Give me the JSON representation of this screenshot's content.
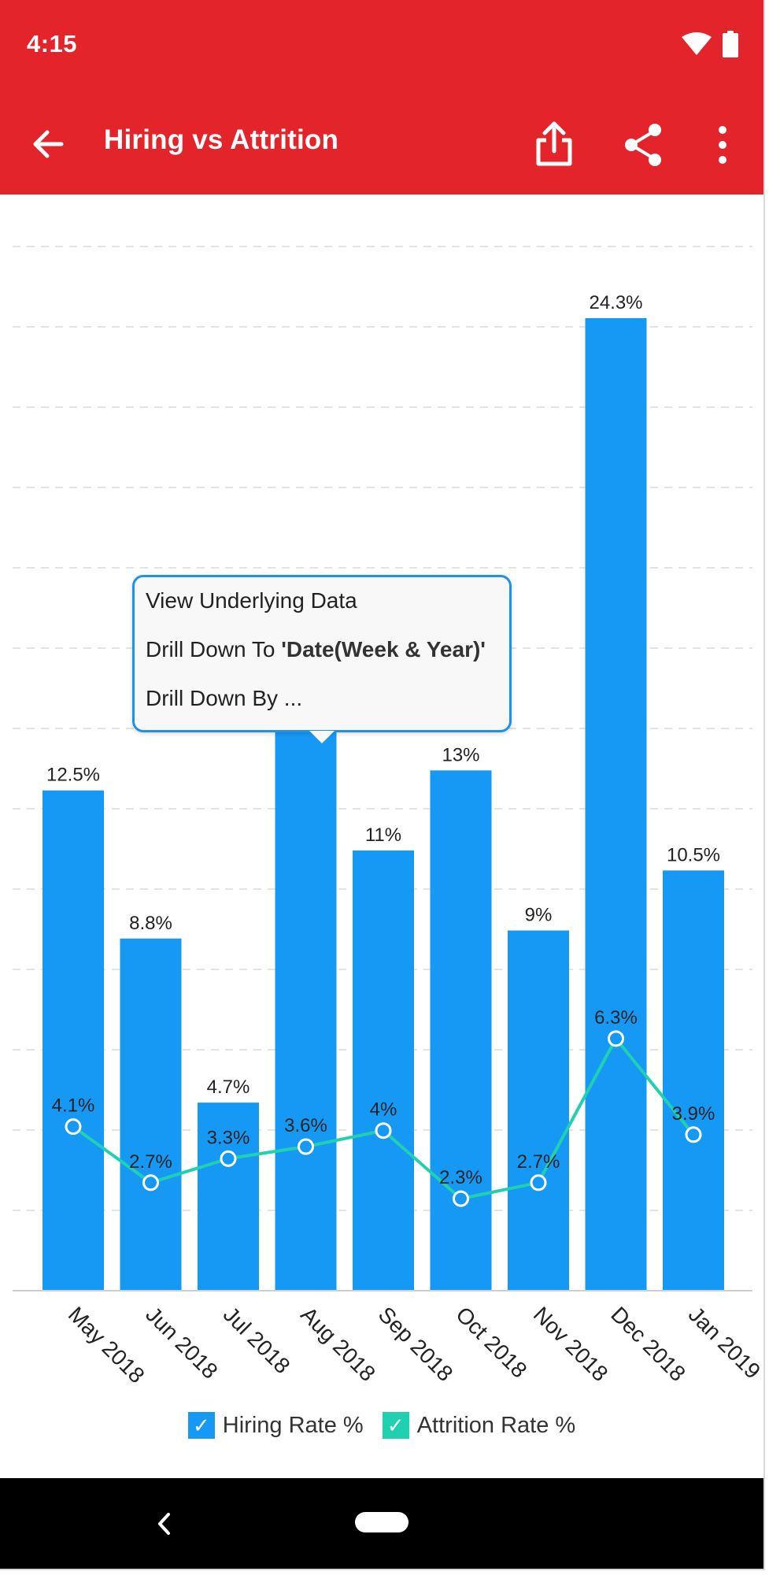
{
  "status": {
    "time": "4:15"
  },
  "appbar": {
    "title": "Hiring vs Attrition"
  },
  "context_menu": {
    "item1": "View Underlying Data",
    "item2_prefix": "Drill Down To ",
    "item2_bold": "'Date(Week & Year)'",
    "item3": "Drill Down By ..."
  },
  "colors": {
    "primary": "#e3252b",
    "hiring": "#1699f5",
    "attrition": "#1fd1b0"
  },
  "chart_data": {
    "type": "bar",
    "categories": [
      "May 2018",
      "Jun 2018",
      "Jul 2018",
      "Aug 2018",
      "Sep 2018",
      "Oct 2018",
      "Nov 2018",
      "Dec 2018",
      "Jan 2019"
    ],
    "series": [
      {
        "name": "Hiring Rate %",
        "type": "bar",
        "values": [
          12.5,
          8.8,
          4.7,
          14.0,
          11,
          13,
          9,
          24.3,
          10.5
        ],
        "labels": [
          "12.5%",
          "8.8%",
          "4.7%",
          "",
          "11%",
          "13%",
          "9%",
          "24.3%",
          "10.5%"
        ]
      },
      {
        "name": "Attrition Rate %",
        "type": "line",
        "values": [
          4.1,
          2.7,
          3.3,
          3.6,
          4,
          2.3,
          2.7,
          6.3,
          3.9
        ],
        "labels": [
          "4.1%",
          "2.7%",
          "3.3%",
          "3.6%",
          "4%",
          "2.3%",
          "2.7%",
          "6.3%",
          "3.9%"
        ]
      }
    ],
    "ylim": [
      0,
      26
    ],
    "grid": true,
    "legend": "bottom",
    "xlabel": "",
    "ylabel": ""
  }
}
